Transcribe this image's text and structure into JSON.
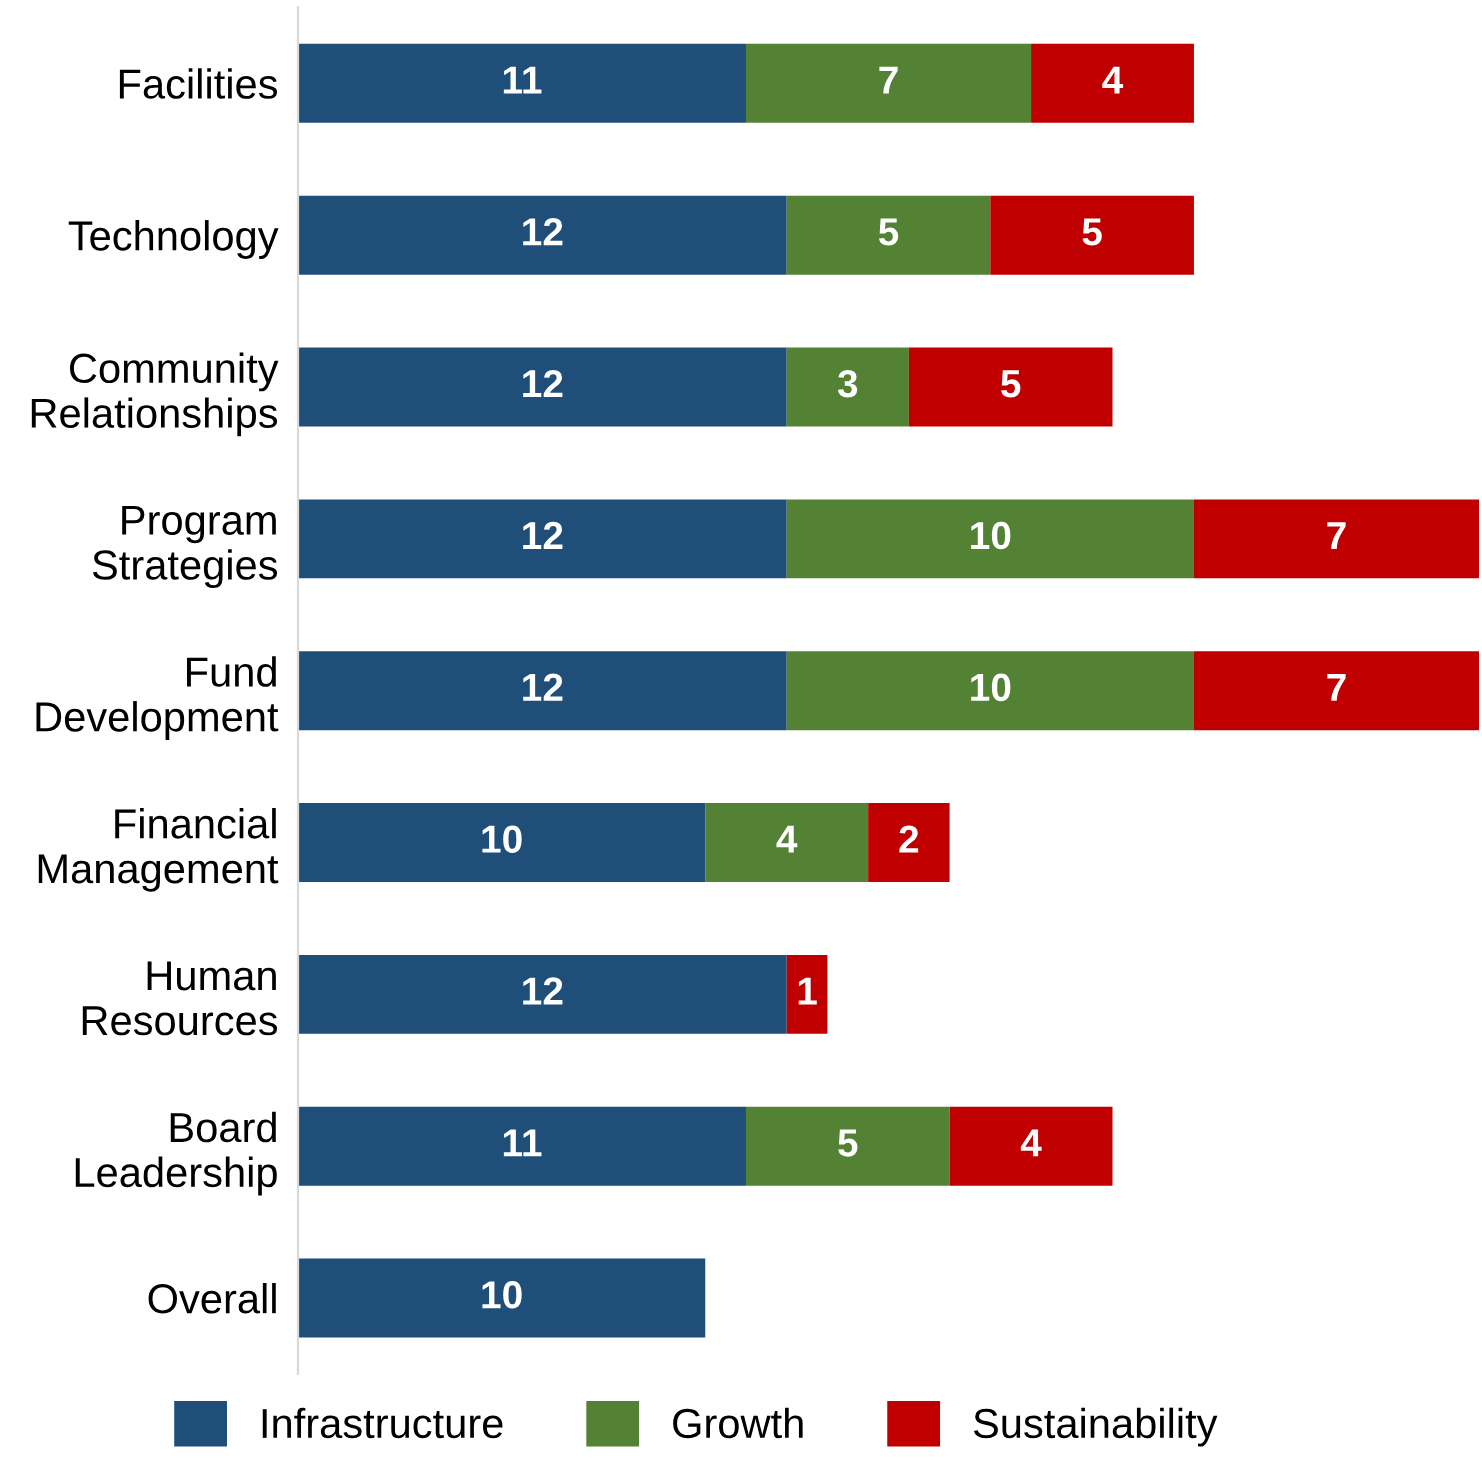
{
  "chart_data": {
    "type": "bar",
    "orientation": "horizontal",
    "stacked": true,
    "data_labels": true,
    "legend": "bottom",
    "grid": false,
    "tick_labels": "y",
    "categories": [
      "Facilities",
      "Technology",
      "Community\nRelationships",
      "Program\nStrategies",
      "Fund\nDevelopment",
      "Financial\nManagement",
      "Human\nResources",
      "Board\nLeadership",
      "Overall"
    ],
    "series": [
      {
        "name": "Infrastructure",
        "color": "#1f4e79",
        "values": [
          11,
          12,
          12,
          12,
          12,
          10,
          12,
          11,
          10
        ]
      },
      {
        "name": "Growth",
        "color": "#548235",
        "values": [
          7,
          5,
          3,
          10,
          10,
          4,
          null,
          5,
          null
        ]
      },
      {
        "name": "Sustainability",
        "color": "#c00000",
        "values": [
          4,
          5,
          5,
          7,
          7,
          2,
          1,
          4,
          null
        ]
      }
    ]
  }
}
